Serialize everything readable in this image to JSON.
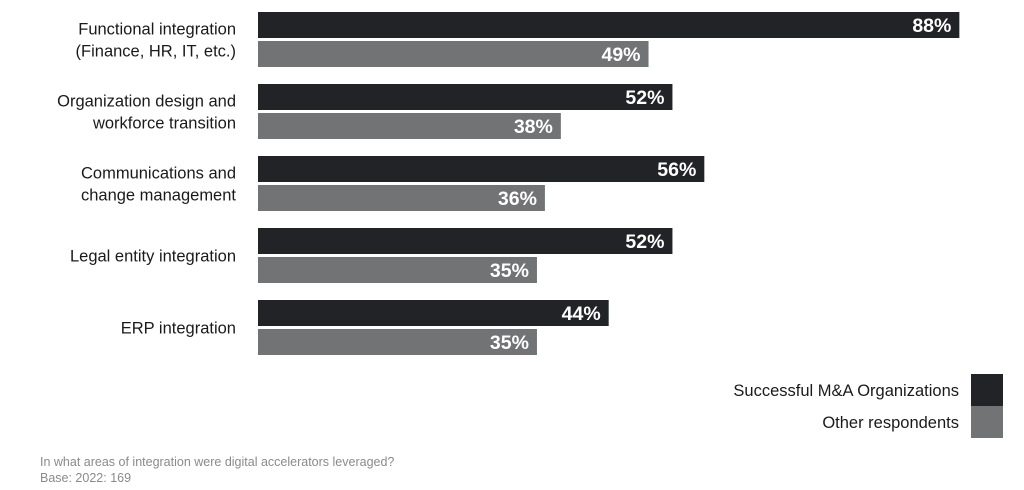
{
  "chart_data": {
    "type": "bar",
    "orientation": "horizontal",
    "categories": [
      [
        "Functional integration",
        "(Finance, HR, IT, etc.)"
      ],
      [
        "Organization design and",
        "workforce transition"
      ],
      [
        "Communications and",
        "change management"
      ],
      [
        "Legal entity integration"
      ],
      [
        "ERP integration"
      ]
    ],
    "series": [
      {
        "name": "Successful M&A Organizations",
        "color": "#222326",
        "values": [
          88,
          52,
          56,
          52,
          44
        ],
        "labels": [
          "88%",
          "52%",
          "56%",
          "52%",
          "44%"
        ]
      },
      {
        "name": "Other respondents",
        "color": "#727374",
        "values": [
          49,
          38,
          36,
          35,
          35
        ],
        "labels": [
          "49%",
          "38%",
          "36%",
          "35%",
          "35%"
        ]
      }
    ],
    "xlim": [
      0,
      100
    ],
    "grid": false,
    "legend": "bottom-right"
  },
  "footnote": {
    "question": "In what areas of integration were digital accelerators leveraged?",
    "base": "Base: 2022: 169"
  }
}
